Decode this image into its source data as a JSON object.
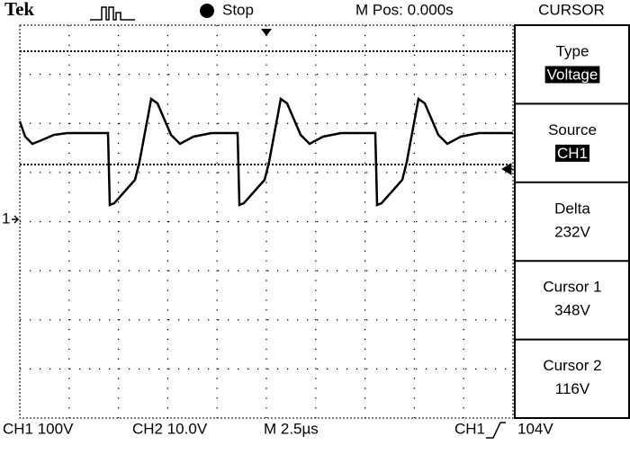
{
  "header": {
    "brand": "Tek",
    "status": "Stop",
    "position": "M Pos: 0.000s"
  },
  "menu": {
    "title": "CURSOR",
    "items": [
      {
        "label": "Type",
        "value": "Voltage"
      },
      {
        "label": "Source",
        "value": "CH1"
      },
      {
        "label": "Delta",
        "value": "232V"
      },
      {
        "label": "Cursor 1",
        "value": "348V"
      },
      {
        "label": "Cursor 2",
        "value": "116V"
      }
    ]
  },
  "footer": {
    "ch1": "CH1 100V",
    "ch2": "CH2 10.0V",
    "timebase": "M 2.5µs",
    "trigger_source": "CH1",
    "trigger_level": "104V"
  },
  "markers": {
    "channel": "1"
  }
}
